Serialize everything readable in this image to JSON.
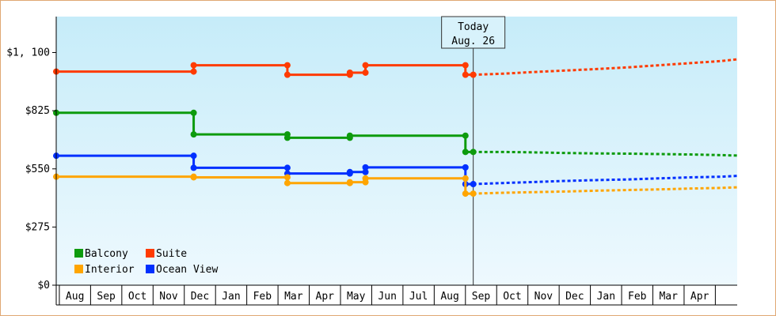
{
  "chart_data": {
    "type": "line",
    "title": "",
    "xlabel": "",
    "ylabel": "",
    "ylim": [
      0,
      1270
    ],
    "y_ticks": [
      {
        "value": 0,
        "label": "$0"
      },
      {
        "value": 275,
        "label": "$275"
      },
      {
        "value": 550,
        "label": "$550"
      },
      {
        "value": 825,
        "label": "$825"
      },
      {
        "value": 1100,
        "label": "$1, 100"
      }
    ],
    "months": [
      "Aug",
      "Sep",
      "Oct",
      "Nov",
      "Dec",
      "Jan",
      "Feb",
      "Mar",
      "Apr",
      "May",
      "Jun",
      "Jul",
      "Aug",
      "Sep",
      "Oct",
      "Nov",
      "Dec",
      "Jan",
      "Feb",
      "Mar",
      "Apr"
    ],
    "x_domain": [
      -0.6,
      21.2
    ],
    "today": {
      "x": 12.75,
      "line1": "Today",
      "line2": "Aug. 26"
    },
    "legend_position": "bottom-left",
    "grid": false,
    "background": {
      "top": "#c6ecf9",
      "bottom": "#eef9fe"
    },
    "series": [
      {
        "name": "Suite",
        "color": "#ff3b00",
        "history": [
          [
            -0.6,
            1010
          ],
          [
            3.8,
            1010
          ],
          [
            3.8,
            1040
          ],
          [
            6.8,
            1040
          ],
          [
            6.8,
            995
          ],
          [
            8.8,
            995
          ],
          [
            8.8,
            1005
          ],
          [
            9.3,
            1005
          ],
          [
            9.3,
            1040
          ],
          [
            12.5,
            1040
          ],
          [
            12.5,
            995
          ],
          [
            12.75,
            995
          ]
        ],
        "markers": [
          [
            -0.6,
            1010
          ],
          [
            3.8,
            1010
          ],
          [
            3.8,
            1040
          ],
          [
            6.8,
            1040
          ],
          [
            6.8,
            995
          ],
          [
            8.8,
            995
          ],
          [
            8.8,
            1005
          ],
          [
            9.3,
            1005
          ],
          [
            9.3,
            1040
          ],
          [
            12.5,
            1040
          ],
          [
            12.5,
            995
          ],
          [
            12.75,
            995
          ]
        ],
        "forecast": [
          [
            12.75,
            995
          ],
          [
            13.7,
            1000
          ],
          [
            14.7,
            1008
          ],
          [
            15.7,
            1015
          ],
          [
            16.7,
            1022
          ],
          [
            17.7,
            1030
          ],
          [
            18.7,
            1040
          ],
          [
            19.7,
            1050
          ],
          [
            20.7,
            1060
          ],
          [
            21.2,
            1068
          ]
        ]
      },
      {
        "name": "Balcony",
        "color": "#0d9b0d",
        "history": [
          [
            -0.6,
            815
          ],
          [
            3.8,
            815
          ],
          [
            3.8,
            713
          ],
          [
            6.8,
            713
          ],
          [
            6.8,
            697
          ],
          [
            8.8,
            697
          ],
          [
            8.8,
            707
          ],
          [
            12.5,
            707
          ],
          [
            12.5,
            630
          ],
          [
            12.75,
            630
          ]
        ],
        "markers": [
          [
            -0.6,
            815
          ],
          [
            3.8,
            815
          ],
          [
            3.8,
            713
          ],
          [
            6.8,
            713
          ],
          [
            6.8,
            697
          ],
          [
            8.8,
            697
          ],
          [
            8.8,
            707
          ],
          [
            12.5,
            707
          ],
          [
            12.5,
            630
          ],
          [
            12.75,
            630
          ]
        ],
        "forecast": [
          [
            12.75,
            630
          ],
          [
            13.7,
            630
          ],
          [
            14.7,
            628
          ],
          [
            15.7,
            625
          ],
          [
            16.7,
            623
          ],
          [
            17.7,
            622
          ],
          [
            18.7,
            620
          ],
          [
            19.7,
            618
          ],
          [
            20.7,
            615
          ],
          [
            21.2,
            613
          ]
        ]
      },
      {
        "name": "Ocean View",
        "color": "#0030ff",
        "history": [
          [
            -0.6,
            612
          ],
          [
            3.8,
            612
          ],
          [
            3.8,
            555
          ],
          [
            6.8,
            555
          ],
          [
            6.8,
            528
          ],
          [
            8.8,
            528
          ],
          [
            8.8,
            535
          ],
          [
            9.3,
            535
          ],
          [
            9.3,
            557
          ],
          [
            12.5,
            557
          ],
          [
            12.5,
            478
          ],
          [
            12.75,
            478
          ]
        ],
        "markers": [
          [
            -0.6,
            612
          ],
          [
            3.8,
            612
          ],
          [
            3.8,
            555
          ],
          [
            6.8,
            555
          ],
          [
            6.8,
            528
          ],
          [
            8.8,
            528
          ],
          [
            8.8,
            535
          ],
          [
            9.3,
            535
          ],
          [
            9.3,
            557
          ],
          [
            12.5,
            557
          ],
          [
            12.5,
            478
          ],
          [
            12.75,
            478
          ]
        ],
        "forecast": [
          [
            12.75,
            478
          ],
          [
            13.7,
            483
          ],
          [
            14.7,
            488
          ],
          [
            15.7,
            493
          ],
          [
            16.7,
            497
          ],
          [
            17.7,
            500
          ],
          [
            18.7,
            505
          ],
          [
            19.7,
            510
          ],
          [
            20.7,
            513
          ],
          [
            21.2,
            517
          ]
        ]
      },
      {
        "name": "Interior",
        "color": "#ffa500",
        "history": [
          [
            -0.6,
            513
          ],
          [
            3.8,
            513
          ],
          [
            3.8,
            510
          ],
          [
            6.8,
            510
          ],
          [
            6.8,
            483
          ],
          [
            8.8,
            483
          ],
          [
            8.8,
            487
          ],
          [
            9.3,
            487
          ],
          [
            9.3,
            505
          ],
          [
            12.5,
            505
          ],
          [
            12.5,
            433
          ],
          [
            12.75,
            433
          ]
        ],
        "markers": [
          [
            -0.6,
            513
          ],
          [
            3.8,
            513
          ],
          [
            3.8,
            510
          ],
          [
            6.8,
            510
          ],
          [
            6.8,
            483
          ],
          [
            8.8,
            483
          ],
          [
            8.8,
            487
          ],
          [
            9.3,
            487
          ],
          [
            9.3,
            505
          ],
          [
            12.5,
            505
          ],
          [
            12.5,
            433
          ],
          [
            12.75,
            433
          ]
        ],
        "forecast": [
          [
            12.75,
            433
          ],
          [
            13.7,
            437
          ],
          [
            14.7,
            440
          ],
          [
            15.7,
            443
          ],
          [
            16.7,
            447
          ],
          [
            17.7,
            450
          ],
          [
            18.7,
            453
          ],
          [
            19.7,
            457
          ],
          [
            20.7,
            460
          ],
          [
            21.2,
            463
          ]
        ]
      }
    ],
    "legend": [
      {
        "name": "Balcony",
        "color": "#0d9b0d"
      },
      {
        "name": "Suite",
        "color": "#ff3b00"
      },
      {
        "name": "Interior",
        "color": "#ffa500"
      },
      {
        "name": "Ocean View",
        "color": "#0030ff"
      }
    ]
  }
}
